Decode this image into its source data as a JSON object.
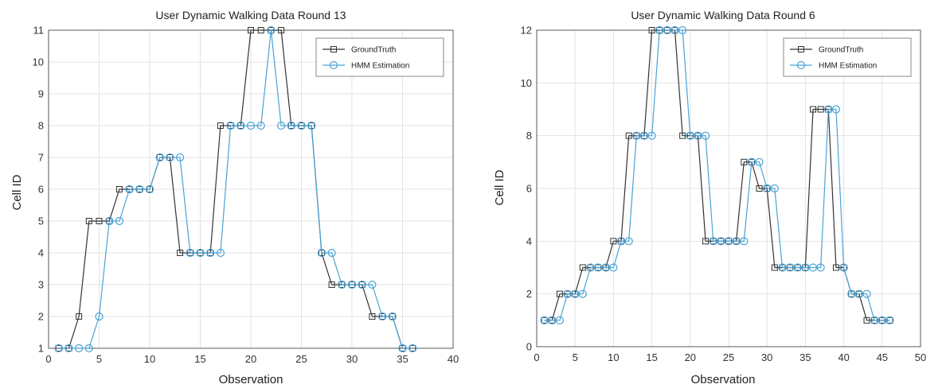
{
  "chart_data": [
    {
      "type": "line",
      "title": "User Dynamic Walking Data Round 13",
      "xlabel": "Observation",
      "ylabel": "Cell ID",
      "xlim": [
        0,
        40
      ],
      "ylim": [
        1,
        11
      ],
      "xticks": [
        0,
        5,
        10,
        15,
        20,
        25,
        30,
        35,
        40
      ],
      "yticks": [
        1,
        2,
        3,
        4,
        5,
        6,
        7,
        8,
        9,
        10,
        11
      ],
      "grid": true,
      "legend_position": "top-right",
      "series": [
        {
          "name": "GroundTruth",
          "color": "#333333",
          "marker": "square",
          "x": [
            1,
            2,
            3,
            4,
            5,
            6,
            7,
            8,
            9,
            10,
            11,
            12,
            13,
            14,
            15,
            16,
            17,
            18,
            19,
            20,
            21,
            22,
            23,
            24,
            25,
            26,
            27,
            28,
            29,
            30,
            31,
            32,
            33,
            34,
            35,
            36
          ],
          "y": [
            1,
            1,
            2,
            5,
            5,
            5,
            6,
            6,
            6,
            6,
            7,
            7,
            4,
            4,
            4,
            4,
            8,
            8,
            8,
            11,
            11,
            11,
            11,
            8,
            8,
            8,
            4,
            3,
            3,
            3,
            3,
            2,
            2,
            2,
            1,
            1
          ]
        },
        {
          "name": "HMM Estimation",
          "color": "#4aa3d6",
          "marker": "circle",
          "x": [
            1,
            2,
            3,
            4,
            5,
            6,
            7,
            8,
            9,
            10,
            11,
            12,
            13,
            14,
            15,
            16,
            17,
            18,
            19,
            20,
            21,
            22,
            23,
            24,
            25,
            26,
            27,
            28,
            29,
            30,
            31,
            32,
            33,
            34,
            35,
            36
          ],
          "y": [
            1,
            1,
            1,
            1,
            2,
            5,
            5,
            6,
            6,
            6,
            7,
            7,
            7,
            4,
            4,
            4,
            4,
            8,
            8,
            8,
            8,
            11,
            8,
            8,
            8,
            8,
            4,
            4,
            3,
            3,
            3,
            3,
            2,
            2,
            1,
            1
          ]
        }
      ]
    },
    {
      "type": "line",
      "title": "User Dynamic Walking Data Round 6",
      "xlabel": "Observation",
      "ylabel": "Cell ID",
      "xlim": [
        0,
        50
      ],
      "ylim": [
        0,
        12
      ],
      "xticks": [
        0,
        5,
        10,
        15,
        20,
        25,
        30,
        35,
        40,
        45,
        50
      ],
      "yticks": [
        0,
        2,
        4,
        6,
        8,
        10,
        12
      ],
      "grid": true,
      "legend_position": "top-right",
      "series": [
        {
          "name": "GroundTruth",
          "color": "#333333",
          "marker": "square",
          "x": [
            1,
            2,
            3,
            4,
            5,
            6,
            7,
            8,
            9,
            10,
            11,
            12,
            13,
            14,
            15,
            16,
            17,
            18,
            19,
            20,
            21,
            22,
            23,
            24,
            25,
            26,
            27,
            28,
            29,
            30,
            31,
            32,
            33,
            34,
            35,
            36,
            37,
            38,
            39,
            40,
            41,
            42,
            43,
            44,
            45,
            46
          ],
          "y": [
            1,
            1,
            2,
            2,
            2,
            3,
            3,
            3,
            3,
            4,
            4,
            8,
            8,
            8,
            12,
            12,
            12,
            12,
            8,
            8,
            8,
            4,
            4,
            4,
            4,
            4,
            7,
            7,
            6,
            6,
            3,
            3,
            3,
            3,
            3,
            9,
            9,
            9,
            3,
            3,
            2,
            2,
            1,
            1,
            1,
            1
          ]
        },
        {
          "name": "HMM Estimation",
          "color": "#4aa3d6",
          "marker": "circle",
          "x": [
            1,
            2,
            3,
            4,
            5,
            6,
            7,
            8,
            9,
            10,
            11,
            12,
            13,
            14,
            15,
            16,
            17,
            18,
            19,
            20,
            21,
            22,
            23,
            24,
            25,
            26,
            27,
            28,
            29,
            30,
            31,
            32,
            33,
            34,
            35,
            36,
            37,
            38,
            39,
            40,
            41,
            42,
            43,
            44,
            45,
            46
          ],
          "y": [
            1,
            1,
            1,
            2,
            2,
            2,
            3,
            3,
            3,
            3,
            4,
            4,
            8,
            8,
            8,
            12,
            12,
            12,
            12,
            8,
            8,
            8,
            4,
            4,
            4,
            4,
            4,
            7,
            7,
            6,
            6,
            3,
            3,
            3,
            3,
            3,
            3,
            9,
            9,
            3,
            2,
            2,
            2,
            1,
            1,
            1
          ]
        }
      ]
    }
  ]
}
